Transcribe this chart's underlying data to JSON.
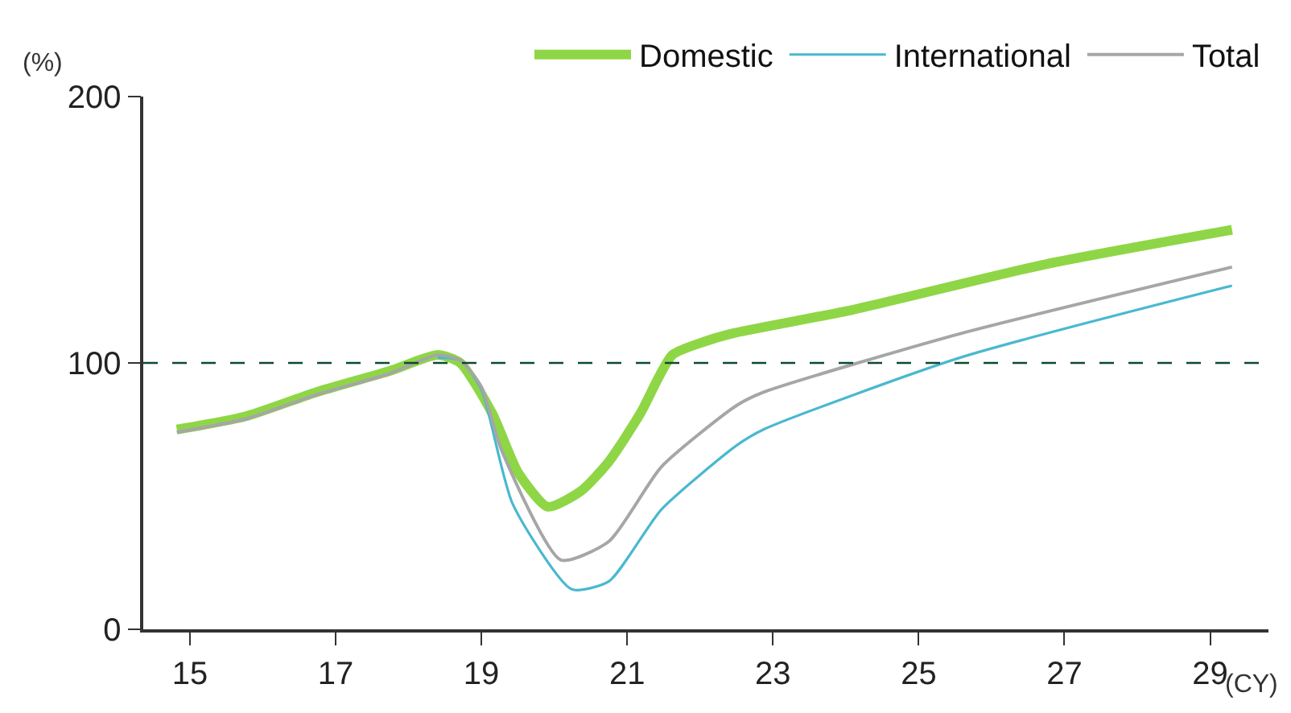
{
  "chart_data": {
    "type": "line",
    "xlabel": "(CY)",
    "ylabel": "(%)",
    "xlim": [
      14.36,
      29.8
    ],
    "xticks": [
      15,
      17,
      19,
      21,
      23,
      25,
      27,
      29
    ],
    "ylim": [
      0,
      200
    ],
    "yticks": [
      0,
      100,
      200
    ],
    "legend": "top",
    "marker": "none",
    "line_style": "solid",
    "ref_lines": [
      {
        "axis": "y",
        "value": 100,
        "color": "#0b4a2e",
        "line_style": "dashed"
      }
    ],
    "series": [
      {
        "name": "Domestic",
        "color": "#8ed646",
        "x": [
          14.82,
          15.77,
          16.73,
          17.74,
          18.4,
          18.71,
          19.15,
          19.5,
          19.91,
          20.37,
          20.75,
          21.18,
          21.62,
          22.06,
          22.43,
          24.1,
          26.73,
          29.3
        ],
        "values": [
          75,
          80,
          89,
          97,
          103,
          100,
          81,
          59,
          46,
          52,
          63,
          81,
          103,
          108,
          111,
          120,
          137,
          150
        ]
      },
      {
        "name": "International",
        "color": "#4ab8d0",
        "x": [
          18.4,
          18.71,
          19.0,
          19.43,
          20.24,
          20.75,
          21.47,
          22.5,
          22.87,
          25.57,
          29.3
        ],
        "values": [
          102,
          101,
          90,
          47,
          15,
          18,
          45,
          69,
          75,
          102,
          129
        ]
      },
      {
        "name": "Total",
        "color": "#a6a6a6",
        "x": [
          14.82,
          15.77,
          16.73,
          17.74,
          18.4,
          18.71,
          19.0,
          19.28,
          20.09,
          20.75,
          21.47,
          22.5,
          22.87,
          25.57,
          29.3
        ],
        "values": [
          74,
          79,
          88,
          96,
          103,
          101,
          91,
          67,
          26,
          33,
          61,
          84,
          89,
          111,
          136
        ]
      }
    ]
  }
}
